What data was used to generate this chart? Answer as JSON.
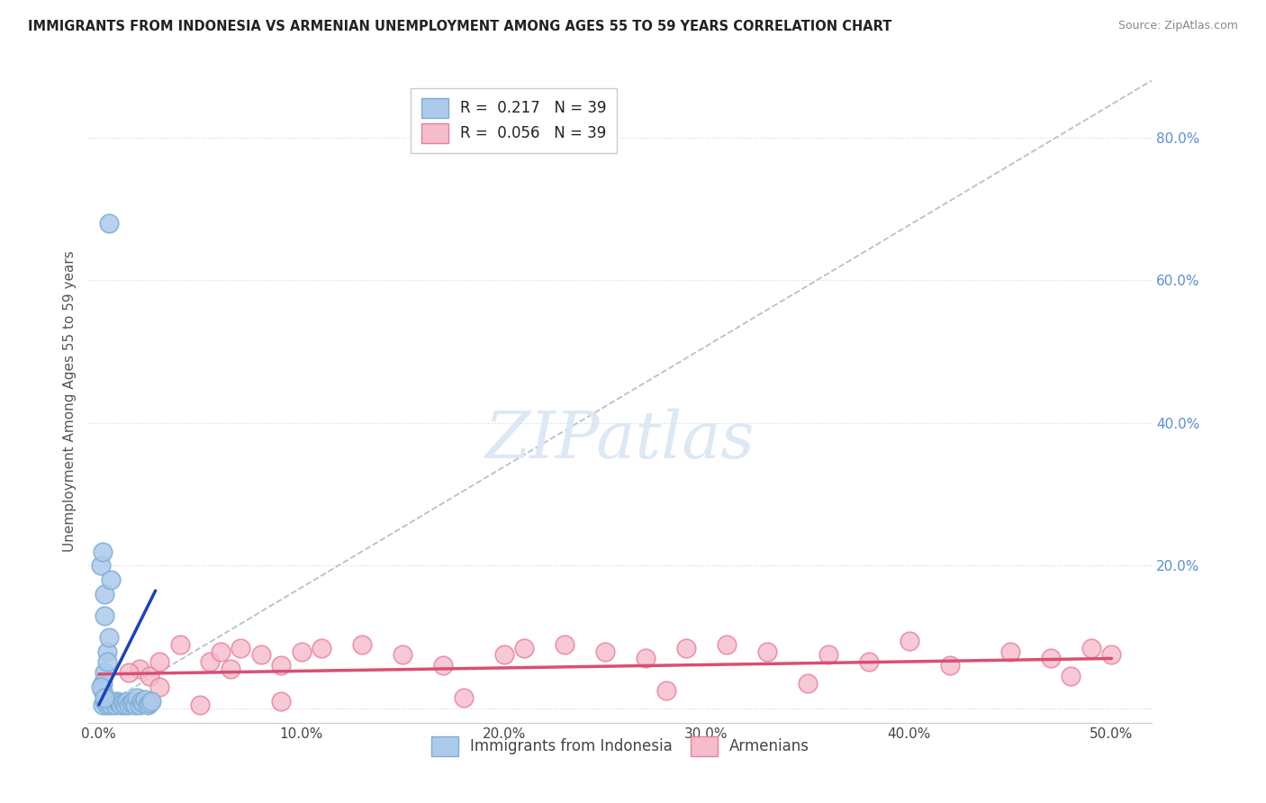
{
  "title": "IMMIGRANTS FROM INDONESIA VS ARMENIAN UNEMPLOYMENT AMONG AGES 55 TO 59 YEARS CORRELATION CHART",
  "source": "Source: ZipAtlas.com",
  "ylabel": "Unemployment Among Ages 55 to 59 years",
  "xlim": [
    -0.005,
    0.52
  ],
  "ylim": [
    -0.02,
    0.88
  ],
  "xticks": [
    0.0,
    0.1,
    0.2,
    0.3,
    0.4,
    0.5
  ],
  "xticklabels": [
    "0.0%",
    "10.0%",
    "20.0%",
    "30.0%",
    "40.0%",
    "50.0%"
  ],
  "yticks": [
    0.0,
    0.2,
    0.4,
    0.6,
    0.8
  ],
  "yticklabels": [
    "",
    "20.0%",
    "40.0%",
    "60.0%",
    "80.0%"
  ],
  "legend_r1": "R =  0.217",
  "legend_n1": "N = 39",
  "legend_r2": "R =  0.056",
  "legend_n2": "N = 39",
  "legend_label1": "Immigrants from Indonesia",
  "legend_label2": "Armenians",
  "series1_color": "#adc9eb",
  "series1_edge": "#7bafd4",
  "series2_color": "#f5bccb",
  "series2_edge": "#e87fa0",
  "trendline1_color": "#1a44bb",
  "trendline2_color": "#d94f72",
  "refline_color": "#b0b8c8",
  "background_color": "#ffffff",
  "watermark": "ZIPatlas",
  "watermark_color": "#dde8f5",
  "scatter1_x": [
    0.002,
    0.003,
    0.004,
    0.005,
    0.006,
    0.007,
    0.008,
    0.009,
    0.01,
    0.011,
    0.012,
    0.013,
    0.014,
    0.015,
    0.016,
    0.017,
    0.018,
    0.019,
    0.02,
    0.021,
    0.022,
    0.023,
    0.024,
    0.025,
    0.026,
    0.002,
    0.003,
    0.004,
    0.005,
    0.003,
    0.001,
    0.002,
    0.003,
    0.004,
    0.005,
    0.006,
    0.002,
    0.001,
    0.003
  ],
  "scatter1_y": [
    0.005,
    0.01,
    0.005,
    0.008,
    0.005,
    0.01,
    0.005,
    0.01,
    0.008,
    0.005,
    0.008,
    0.005,
    0.01,
    0.005,
    0.008,
    0.01,
    0.005,
    0.015,
    0.005,
    0.01,
    0.008,
    0.012,
    0.005,
    0.008,
    0.01,
    0.035,
    0.05,
    0.08,
    0.1,
    0.13,
    0.2,
    0.22,
    0.16,
    0.065,
    0.68,
    0.18,
    0.025,
    0.03,
    0.015
  ],
  "scatter2_x": [
    0.02,
    0.025,
    0.03,
    0.04,
    0.055,
    0.06,
    0.065,
    0.07,
    0.08,
    0.09,
    0.1,
    0.11,
    0.13,
    0.15,
    0.17,
    0.2,
    0.21,
    0.23,
    0.25,
    0.27,
    0.29,
    0.31,
    0.33,
    0.36,
    0.38,
    0.4,
    0.42,
    0.45,
    0.47,
    0.49,
    0.5,
    0.48,
    0.35,
    0.28,
    0.18,
    0.09,
    0.05,
    0.03,
    0.015
  ],
  "scatter2_y": [
    0.055,
    0.045,
    0.065,
    0.09,
    0.065,
    0.08,
    0.055,
    0.085,
    0.075,
    0.06,
    0.08,
    0.085,
    0.09,
    0.075,
    0.06,
    0.075,
    0.085,
    0.09,
    0.08,
    0.07,
    0.085,
    0.09,
    0.08,
    0.075,
    0.065,
    0.095,
    0.06,
    0.08,
    0.07,
    0.085,
    0.075,
    0.045,
    0.035,
    0.025,
    0.015,
    0.01,
    0.005,
    0.03,
    0.05
  ],
  "trendline1_x": [
    0.0,
    0.028
  ],
  "trendline1_y": [
    0.005,
    0.165
  ],
  "trendline2_x": [
    0.0,
    0.5
  ],
  "trendline2_y": [
    0.048,
    0.07
  ],
  "refline_x": [
    0.0,
    0.52
  ],
  "refline_y": [
    0.0,
    0.88
  ],
  "grid_color": "#d0d8e8",
  "grid_linestyle": ":"
}
